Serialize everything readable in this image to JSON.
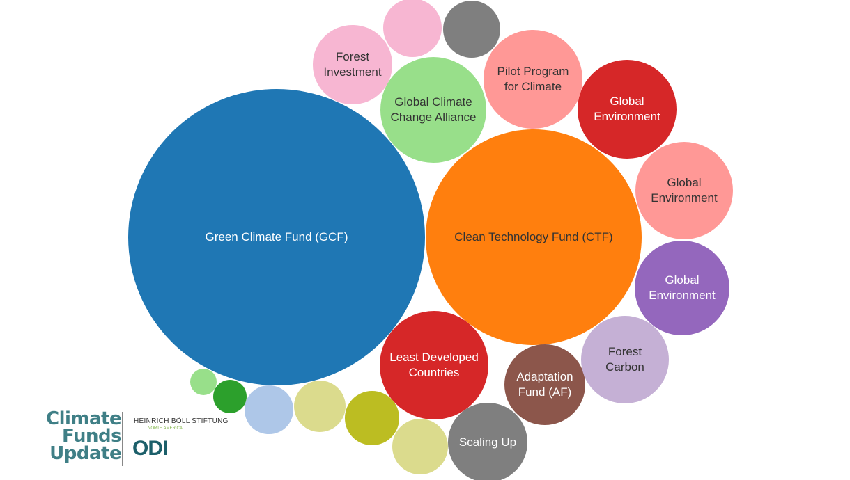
{
  "chart_data": {
    "type": "bubble",
    "categories": [
      "Green Climate Fund (GCF)",
      "Clean Technology Fund (CTF)",
      "Least Developed Countries",
      "Adaptation Fund (AF)",
      "Scaling Up",
      "Forest Carbon",
      "Global Environment",
      "Global Environment",
      "Global Environment",
      "Pilot Program for Climate",
      "Global Climate Change Alliance",
      "Forest Investment",
      null,
      null,
      null,
      null,
      null,
      null,
      null,
      null
    ],
    "values": [
      454,
      240,
      61,
      34,
      32,
      40,
      46,
      49,
      50,
      50,
      58,
      32,
      18,
      17,
      3.6,
      5.8,
      12,
      14,
      15,
      16
    ],
    "colors": [
      "#1f77b4",
      "#ff7f0e",
      "#d62728",
      "#8c564b",
      "#7f7f7f",
      "#c5b0d5",
      "#9467bd",
      "#ff9896",
      "#d62728",
      "#ff9896",
      "#98df8a",
      "#f7b6d2",
      "#f7b6d2",
      "#7f7f7f",
      "#98df8a",
      "#2ca02c",
      "#aec7e8",
      "#dbdb8d",
      "#bcbd22",
      "#dbdb8d"
    ]
  },
  "logos": {
    "climate_funds_update": [
      "Climate",
      "Funds",
      "Update"
    ],
    "boell": "HEINRICH BÖLL STIFTUNG",
    "boell_sub": "NORTH AMERICA",
    "odi": "ODI"
  }
}
